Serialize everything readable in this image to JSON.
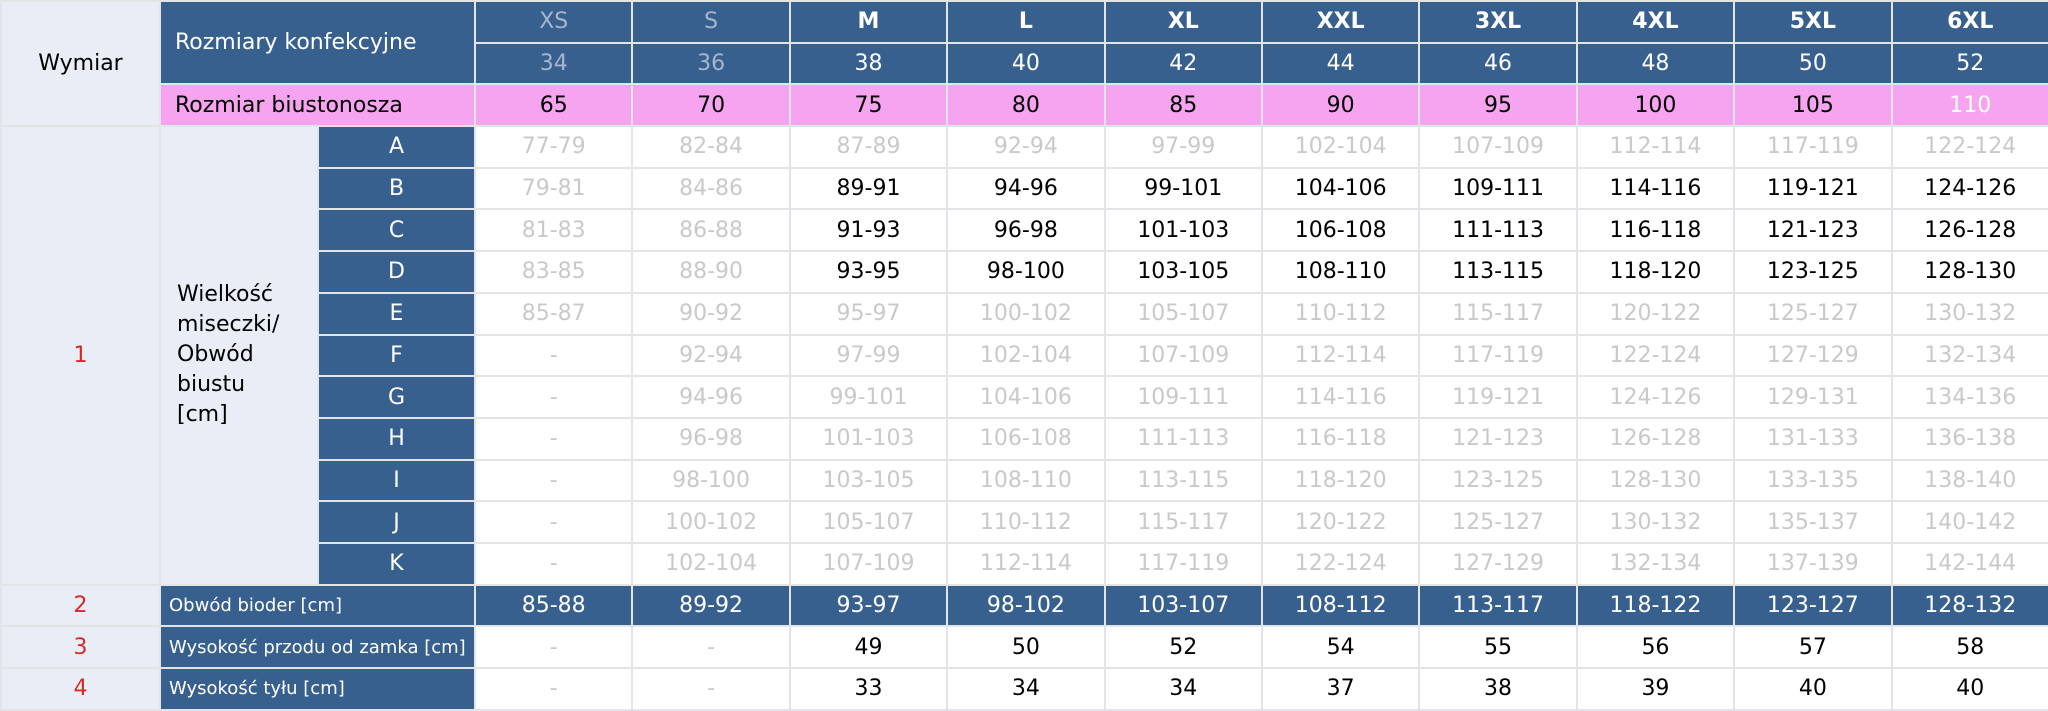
{
  "header": {
    "corner": "Wymiar",
    "size_label": "Rozmiary konfekcyjne",
    "bra_label": "Rozmiar biustonosza",
    "sizes": [
      "XS",
      "S",
      "M",
      "L",
      "XL",
      "XXL",
      "3XL",
      "4XL",
      "5XL",
      "6XL"
    ],
    "numbers": [
      34,
      36,
      38,
      40,
      42,
      44,
      46,
      48,
      50,
      52
    ],
    "bra": [
      65,
      70,
      75,
      80,
      85,
      90,
      95,
      100,
      105,
      110
    ]
  },
  "section1": {
    "number": "1",
    "label": "Wielkość miseczki/ Obwód biustu [cm]",
    "rows": [
      {
        "cup": "A",
        "values": [
          "77-79",
          "82-84",
          "87-89",
          "92-94",
          "97-99",
          "102-104",
          "107-109",
          "112-114",
          "117-119",
          "122-124"
        ]
      },
      {
        "cup": "B",
        "values": [
          "79-81",
          "84-86",
          "89-91",
          "94-96",
          "99-101",
          "104-106",
          "109-111",
          "114-116",
          "119-121",
          "124-126"
        ]
      },
      {
        "cup": "C",
        "values": [
          "81-83",
          "86-88",
          "91-93",
          "96-98",
          "101-103",
          "106-108",
          "111-113",
          "116-118",
          "121-123",
          "126-128"
        ]
      },
      {
        "cup": "D",
        "values": [
          "83-85",
          "88-90",
          "93-95",
          "98-100",
          "103-105",
          "108-110",
          "113-115",
          "118-120",
          "123-125",
          "128-130"
        ]
      },
      {
        "cup": "E",
        "values": [
          "85-87",
          "90-92",
          "95-97",
          "100-102",
          "105-107",
          "110-112",
          "115-117",
          "120-122",
          "125-127",
          "130-132"
        ]
      },
      {
        "cup": "F",
        "values": [
          "-",
          "92-94",
          "97-99",
          "102-104",
          "107-109",
          "112-114",
          "117-119",
          "122-124",
          "127-129",
          "132-134"
        ]
      },
      {
        "cup": "G",
        "values": [
          "-",
          "94-96",
          "99-101",
          "104-106",
          "109-111",
          "114-116",
          "119-121",
          "124-126",
          "129-131",
          "134-136"
        ]
      },
      {
        "cup": "H",
        "values": [
          "-",
          "96-98",
          "101-103",
          "106-108",
          "111-113",
          "116-118",
          "121-123",
          "126-128",
          "131-133",
          "136-138"
        ]
      },
      {
        "cup": "I",
        "values": [
          "-",
          "98-100",
          "103-105",
          "108-110",
          "113-115",
          "118-120",
          "123-125",
          "128-130",
          "133-135",
          "138-140"
        ]
      },
      {
        "cup": "J",
        "values": [
          "-",
          "100-102",
          "105-107",
          "110-112",
          "115-117",
          "120-122",
          "125-127",
          "130-132",
          "135-137",
          "140-142"
        ]
      },
      {
        "cup": "K",
        "values": [
          "-",
          "102-104",
          "107-109",
          "112-114",
          "117-119",
          "122-124",
          "127-129",
          "132-134",
          "137-139",
          "142-144"
        ]
      }
    ]
  },
  "rows": [
    {
      "number": "2",
      "label": "Obwód bioder [cm]",
      "values": [
        "85-88",
        "89-92",
        "93-97",
        "98-102",
        "103-107",
        "108-112",
        "113-117",
        "118-122",
        "123-127",
        "128-132"
      ]
    },
    {
      "number": "3",
      "label": "Wysokość przodu od zamka [cm]",
      "values": [
        "-",
        "-",
        49,
        50,
        52,
        54,
        55,
        56,
        57,
        58
      ]
    },
    {
      "number": "4",
      "label": "Wysokość tyłu [cm]",
      "values": [
        "-",
        "-",
        33,
        34,
        34,
        37,
        38,
        39,
        40,
        40
      ]
    }
  ]
}
